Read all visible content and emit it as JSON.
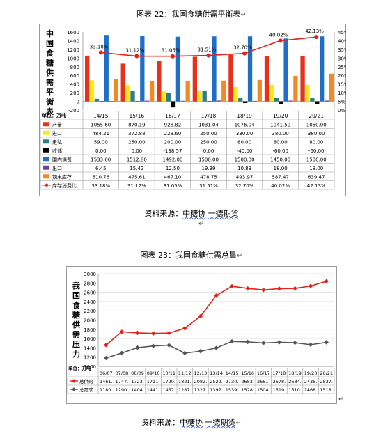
{
  "fig22": {
    "caption": "图表 22：我国食糖供需平衡表",
    "source_prefix": "资料来源：",
    "source_org": "中糖协",
    "source_sep": "  ",
    "source_firm": "一德期货",
    "left_axis_title": [
      "中",
      "国",
      "食",
      "糖",
      "供",
      "需",
      "平",
      "衡",
      "表"
    ],
    "unit_label": "单位：万吨",
    "years": [
      "14/15",
      "15/16",
      "16/17",
      "17/18",
      "18/19",
      "19/20",
      "20/21"
    ],
    "left_axis_ticks": [
      "1600",
      "1400",
      "1200",
      "1000",
      "800",
      "600",
      "400",
      "200",
      "0",
      "-200"
    ],
    "right_axis_ticks": [
      "45%",
      "40%",
      "35%",
      "30%",
      "25%",
      "20%",
      "15%",
      "10%",
      "5%",
      "0%"
    ],
    "point_labels": [
      "33.18%",
      "31.12%",
      "31.05%",
      "31.51%",
      "32.70%",
      "40.02%",
      "42.13%"
    ],
    "rows": [
      {
        "label": "产量",
        "color": "#e8301b",
        "legend_type": "box",
        "values": [
          "1055.60",
          "870.19",
          "928.82",
          "1031.04",
          "1076.04",
          "1041.50",
          "1050.00"
        ]
      },
      {
        "label": "进口",
        "color": "#ffe81a",
        "legend_type": "box",
        "values": [
          "484.21",
          "372.88",
          "228.60",
          "250.00",
          "330.00",
          "380.00",
          "380.00"
        ]
      },
      {
        "label": "走私",
        "color": "#2f7f7f",
        "legend_type": "box",
        "values": [
          "59.00",
          "250.00",
          "200.00",
          "250.00",
          "80.00",
          "80.00",
          "80.00"
        ]
      },
      {
        "label": "收储",
        "color": "#000000",
        "legend_type": "box",
        "values": [
          "0.00",
          "0.00",
          "-138.57",
          "0.00",
          "-40.00",
          "-60.00",
          "-60.00"
        ]
      },
      {
        "label": "国内消费",
        "color": "#1f6fc9",
        "legend_type": "box",
        "values": [
          "1533.00",
          "1512.80",
          "1492.00",
          "1500.00",
          "1500.00",
          "1450.00",
          "1500.00"
        ]
      },
      {
        "label": "出口",
        "color": "#7a3b9e",
        "legend_type": "box",
        "values": [
          "6.45",
          "15.42",
          "12.50",
          "19.39",
          "10.83",
          "18.00",
          "18.00"
        ]
      },
      {
        "label": "期末库存",
        "color": "#f08a24",
        "legend_type": "box",
        "values": [
          "510.76",
          "475.61",
          "467.10",
          "478.75",
          "493.97",
          "587.47",
          "639.47"
        ]
      },
      {
        "label": "库存消费比",
        "color": "#e8201b",
        "legend_type": "line",
        "values": [
          "33.18%",
          "31.12%",
          "31.05%",
          "31.51%",
          "32.70%",
          "40.02%",
          "42.13%"
        ]
      }
    ]
  },
  "fig23": {
    "caption": "图表 23：我国食糖供需总量",
    "source_prefix": "资料来源：",
    "source_org": "中糖协",
    "source_sep": "  ",
    "source_firm": "一德期货",
    "left_axis_title": [
      "我",
      "国",
      "食",
      "糖",
      "供",
      "需",
      "压",
      "力"
    ],
    "unit_label": "单位：万吨",
    "y_ticks": [
      "3000",
      "2800",
      "2600",
      "2400",
      "2200",
      "2000",
      "1800",
      "1600",
      "1400",
      "1200",
      "1000"
    ],
    "years": [
      "06/07",
      "07/08",
      "08/09",
      "09/10",
      "10/11",
      "11/12",
      "12/13",
      "13/14",
      "14/15",
      "15/16",
      "16/17",
      "17/18",
      "18/19",
      "19/20",
      "20/21"
    ],
    "rows": [
      {
        "label": "总供给",
        "color": "#e8201b",
        "values": [
          "1461.",
          "1747.",
          "1723.",
          "1711.",
          "1720.",
          "1821.",
          "2082.",
          "2529.",
          "2730.",
          "2683.",
          "2651.",
          "2678.",
          "2684.",
          "2735.",
          "2837."
        ]
      },
      {
        "label": "总需求",
        "color": "#555555",
        "values": [
          "1180.",
          "1290.",
          "1404.",
          "1441.",
          "1457.",
          "1287.",
          "1327.",
          "1397.",
          "1539.",
          "1528.",
          "1504.",
          "1519.",
          "1510.",
          "1468.",
          "1518."
        ]
      }
    ]
  },
  "chart_data": [
    {
      "type": "bar",
      "categories": [
        "14/15",
        "15/16",
        "16/17",
        "17/18",
        "18/19",
        "19/20",
        "20/21"
      ],
      "series": [
        {
          "name": "产量",
          "values": [
            1055.6,
            870.19,
            928.82,
            1031.04,
            1076.04,
            1041.5,
            1050.0
          ]
        },
        {
          "name": "进口",
          "values": [
            484.21,
            372.88,
            228.6,
            250.0,
            330.0,
            380.0,
            380.0
          ]
        },
        {
          "name": "走私",
          "values": [
            59.0,
            250.0,
            200.0,
            250.0,
            80.0,
            80.0,
            80.0
          ]
        },
        {
          "name": "收储",
          "values": [
            0.0,
            0.0,
            -138.57,
            0.0,
            -40.0,
            -60.0,
            -60.0
          ]
        },
        {
          "name": "国内消费",
          "values": [
            1533.0,
            1512.8,
            1492.0,
            1500.0,
            1500.0,
            1450.0,
            1500.0
          ]
        },
        {
          "name": "出口",
          "values": [
            6.45,
            15.42,
            12.5,
            19.39,
            10.83,
            18.0,
            18.0
          ]
        },
        {
          "name": "期末库存",
          "values": [
            510.76,
            475.61,
            467.1,
            478.75,
            493.97,
            587.47,
            639.47
          ]
        },
        {
          "name": "库存消费比",
          "type": "line",
          "axis": "right",
          "values": [
            33.18,
            31.12,
            31.05,
            31.51,
            32.7,
            40.02,
            42.13
          ]
        }
      ],
      "ylim": [
        -200,
        1600
      ],
      "y2lim": [
        0,
        45
      ],
      "grid": false
    },
    {
      "type": "line",
      "categories": [
        "06/07",
        "07/08",
        "08/09",
        "09/10",
        "10/11",
        "11/12",
        "12/13",
        "13/14",
        "14/15",
        "15/16",
        "16/17",
        "17/18",
        "18/19",
        "19/20",
        "20/21"
      ],
      "series": [
        {
          "name": "总供给",
          "values": [
            1461,
            1747,
            1723,
            1711,
            1720,
            1821,
            2082,
            2529,
            2730,
            2683,
            2651,
            2678,
            2684,
            2735,
            2837
          ]
        },
        {
          "name": "总需求",
          "values": [
            1180,
            1290,
            1404,
            1441,
            1457,
            1287,
            1327,
            1397,
            1539,
            1528,
            1504,
            1519,
            1510,
            1468,
            1518
          ]
        }
      ],
      "ylim": [
        1000,
        3000
      ],
      "grid": true
    }
  ]
}
